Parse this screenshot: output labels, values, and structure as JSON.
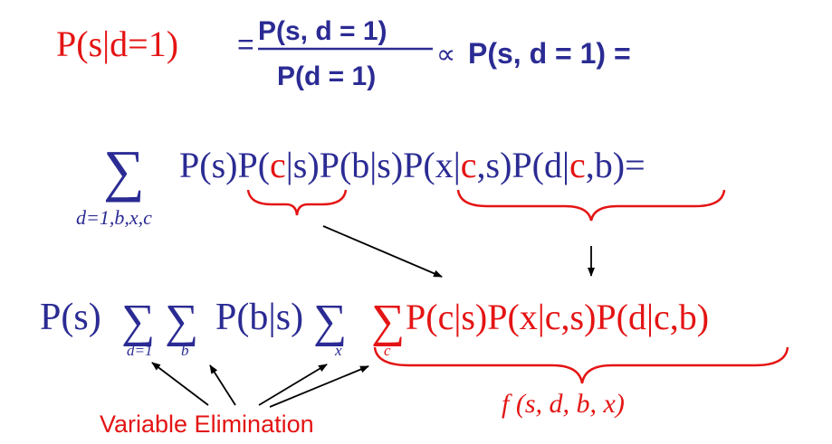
{
  "colors": {
    "blue": "#2b2b94",
    "red": "#e41414",
    "black": "#000000"
  },
  "line1": {
    "lhs": "P(s|d=1)",
    "eq1": "=",
    "numerator": "P(s, d = 1)",
    "denominator": "P(d = 1)",
    "propto": "∝",
    "joint": "P(s, d = 1) ="
  },
  "line2": {
    "sigma": "∑",
    "sum_sub": "d=1,b,x,c",
    "t_ps": "P(s)",
    "t_pc_open": "P(",
    "t_pc_c": "c",
    "t_pc_close": "|s)",
    "t_pb": "P(b|s)",
    "t_px_open": "P(x|",
    "t_px_c": "c",
    "t_px_close": ",s)",
    "t_pd_open": "P(d|",
    "t_pd_c": "c",
    "t_pd_close": ",b)",
    "t_eq": "="
  },
  "line3": {
    "ps": "P(s)",
    "sigma_d": "∑",
    "sub_d": "d=1",
    "sigma_b": "∑",
    "sub_b": "b",
    "pbs": "P(b|s)",
    "sigma_x": "∑",
    "sub_x": "x",
    "sigma_c": "∑",
    "sub_c": "c",
    "red_product": "P(c|s)P(x|c,s)P(d|c,b)"
  },
  "factor_label": "f (s, d, b, x)",
  "ve_label": "Variable Elimination"
}
